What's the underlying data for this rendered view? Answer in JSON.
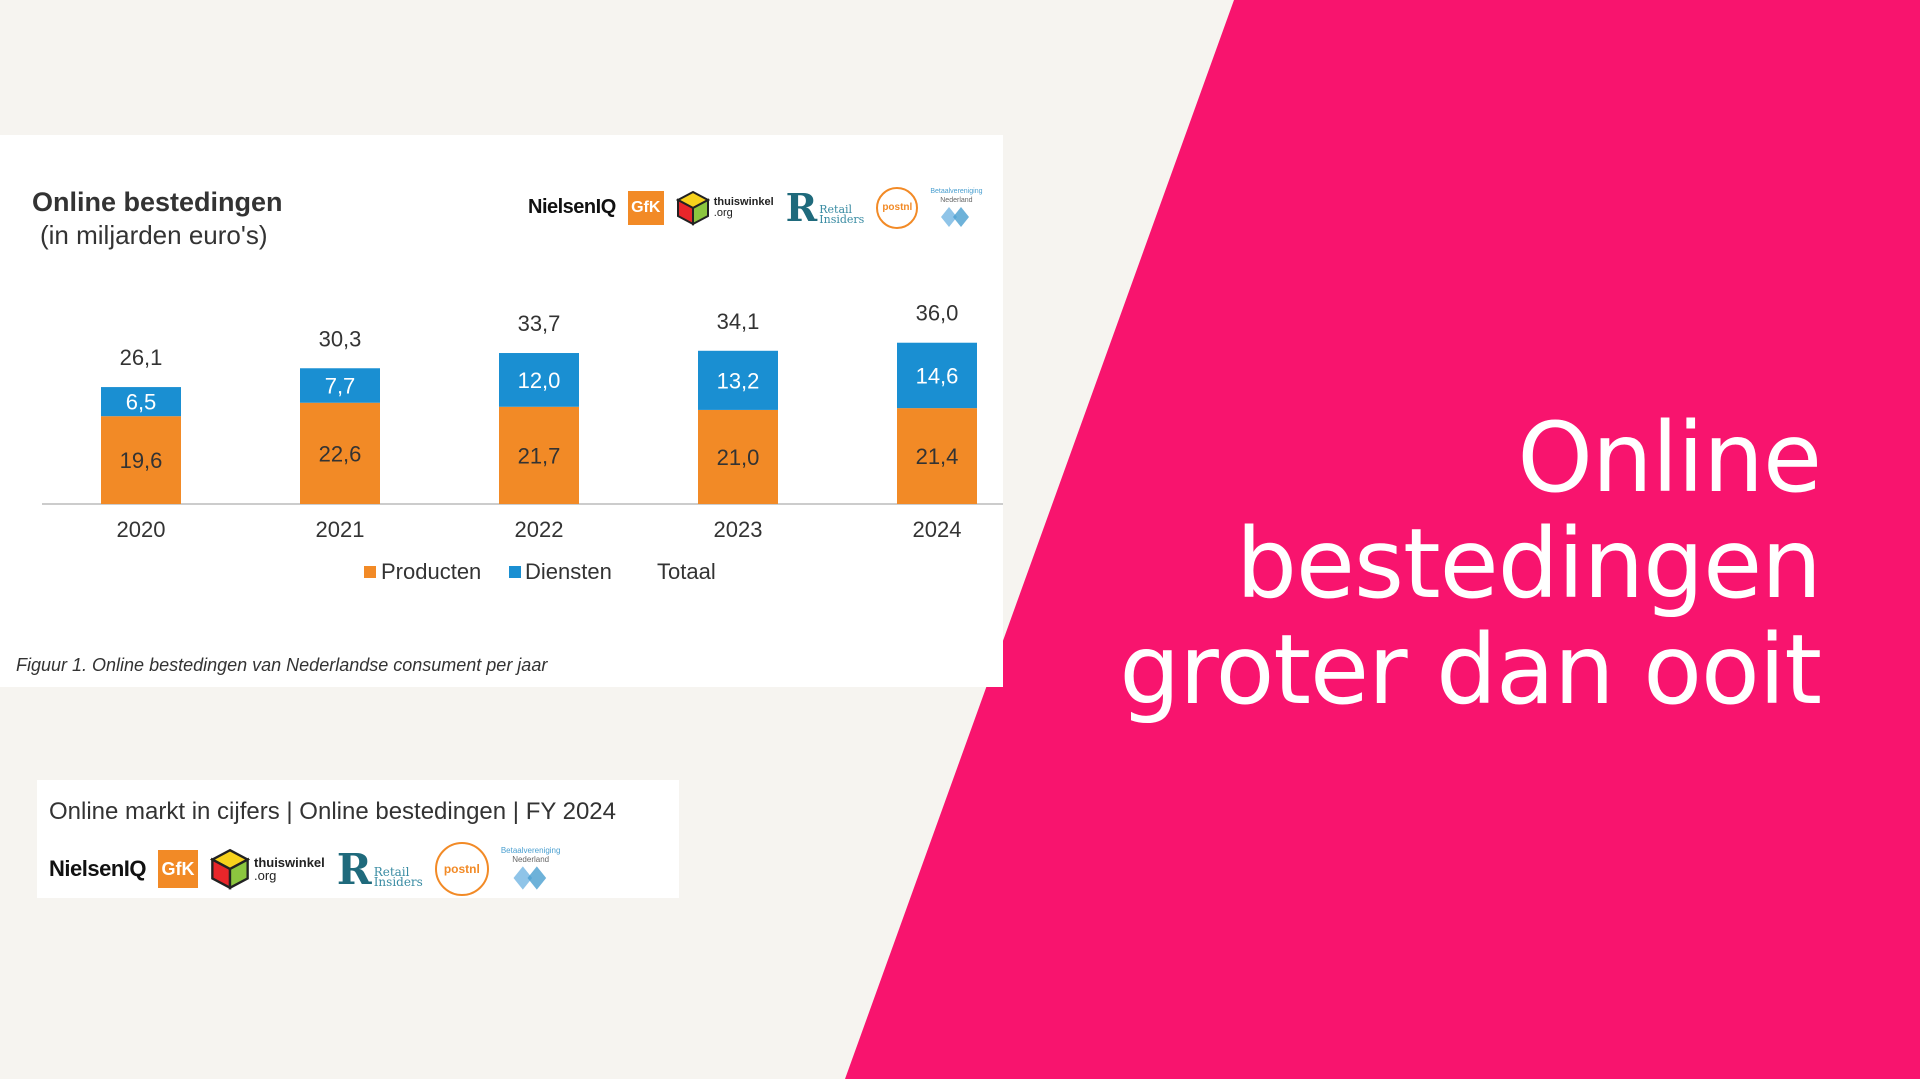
{
  "headline": {
    "line1": "Online",
    "line2": "bestedingen",
    "line3": "groter dan ooit"
  },
  "colors": {
    "accent_pink": "#f8146e",
    "producten": "#f28a26",
    "diensten": "#1a8fd2",
    "background": "#f6f4f0"
  },
  "chart_data": {
    "type": "bar",
    "stacked": true,
    "title": "Online bestedingen",
    "subtitle": "(in miljarden euro's)",
    "categories": [
      "2020",
      "2021",
      "2022",
      "2023",
      "2024"
    ],
    "series": [
      {
        "name": "Producten",
        "values": [
          19.6,
          22.6,
          21.7,
          21.0,
          21.4
        ],
        "labels": [
          "19,6",
          "22,6",
          "21,7",
          "21,0",
          "21,4"
        ]
      },
      {
        "name": "Diensten",
        "values": [
          6.5,
          7.7,
          12.0,
          13.2,
          14.6
        ],
        "labels": [
          "6,5",
          "7,7",
          "12,0",
          "13,2",
          "14,6"
        ]
      }
    ],
    "totals": [
      26.1,
      30.3,
      33.7,
      34.1,
      36.0
    ],
    "total_labels": [
      "26,1",
      "30,3",
      "33,7",
      "34,1",
      "36,0"
    ],
    "legend": [
      "Producten",
      "Diensten",
      "Totaal"
    ],
    "legend_position": "bottom",
    "grid": false
  },
  "figure_caption": "Figuur 1. Online bestedingen van Nederlandse consument per jaar",
  "logos": {
    "nielsen": "NielsenIQ",
    "gfk": "GfK",
    "thuiswinkel": "thuiswinkel",
    "thuiswinkel_org": ".org",
    "retail_r": "R",
    "retail_line1": "Retail",
    "retail_line2": "Insiders",
    "postnl": "postnl",
    "betaal_line1": "Betaalvereniging",
    "betaal_line2": "Nederland"
  },
  "bottom_card": {
    "title": "Online markt in cijfers | Online bestedingen | FY 2024"
  }
}
